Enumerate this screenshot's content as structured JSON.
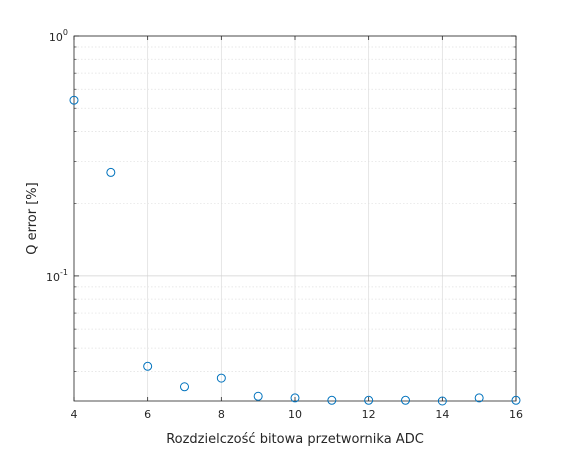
{
  "chart_data": {
    "type": "scatter",
    "title": "",
    "xlabel": "Rozdzielczość bitowa przetwornika ADC",
    "ylabel": "Q error [%]",
    "x": [
      4,
      5,
      6,
      7,
      8,
      9,
      10,
      11,
      12,
      13,
      14,
      15,
      16
    ],
    "y": [
      0.54,
      0.27,
      0.042,
      0.0345,
      0.0375,
      0.0315,
      0.031,
      0.0303,
      0.0303,
      0.0303,
      0.0301,
      0.031,
      0.0303
    ],
    "xlim": [
      4,
      16
    ],
    "ylim": [
      0.0301,
      1
    ],
    "yscale": "log",
    "grid": true,
    "x_ticks": [
      "4",
      "6",
      "8",
      "10",
      "12",
      "14",
      "16"
    ],
    "y_ticks": [
      {
        "base": "10",
        "exp": "0"
      },
      {
        "base": "10",
        "exp": "-1"
      }
    ],
    "marker_color": "#0072BD"
  }
}
